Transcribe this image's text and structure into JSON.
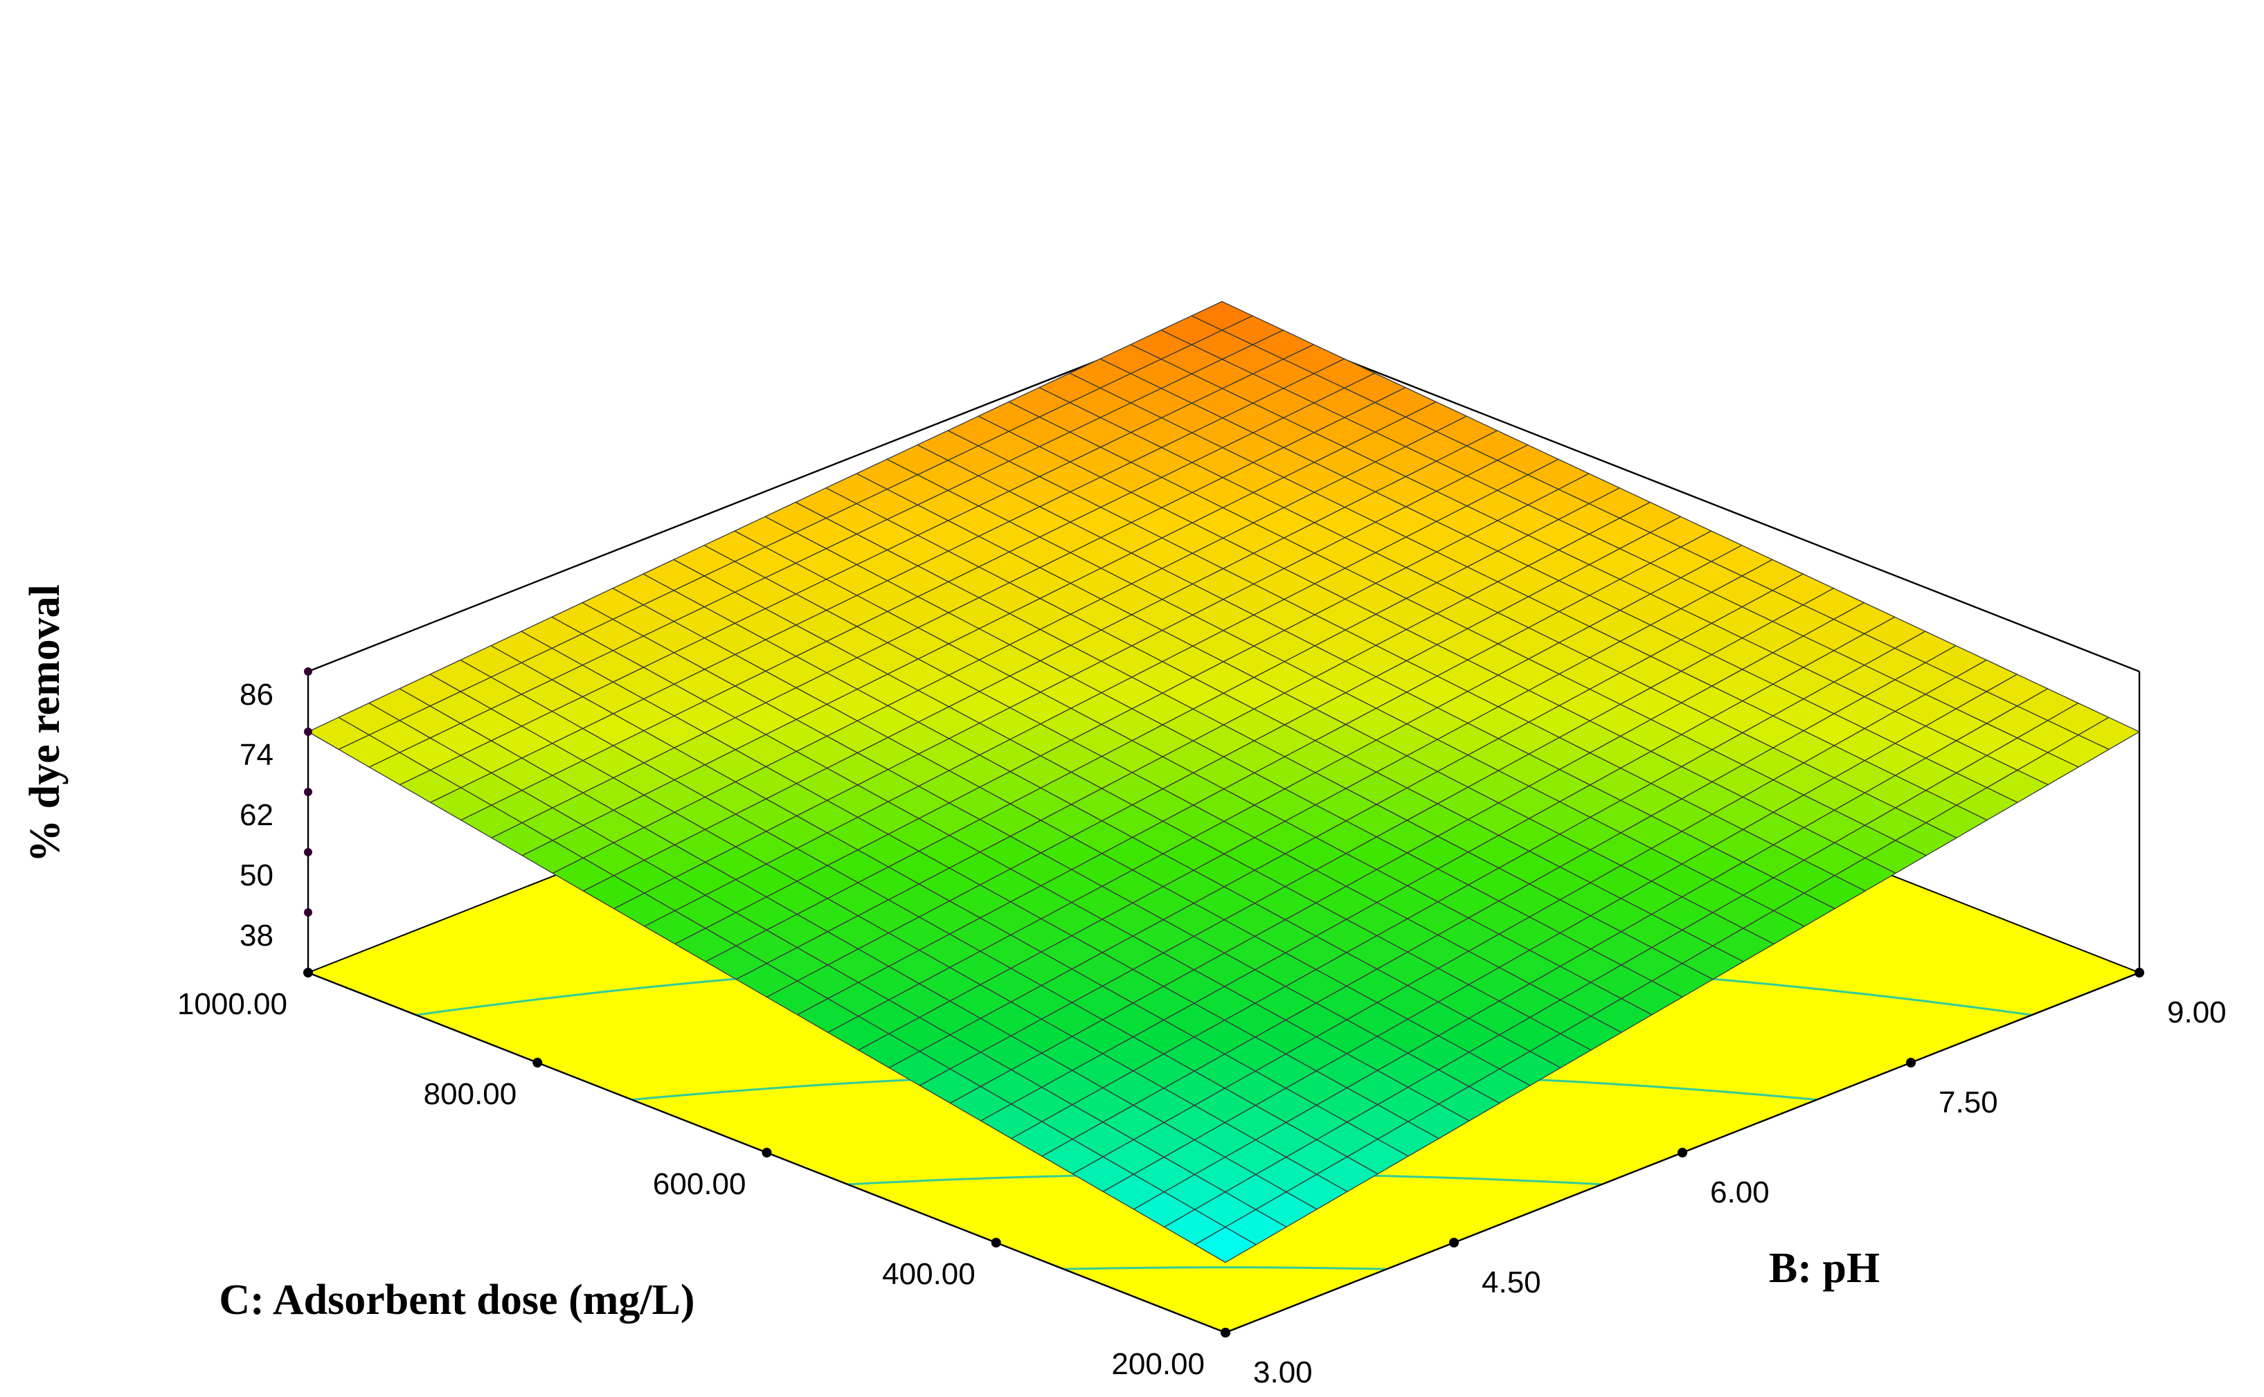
{
  "chart_data": {
    "type": "surface3d",
    "title": "",
    "zlabel": "% dye removal",
    "xlabel": "C: Adsorbent dose (mg/L)",
    "ylabel": "B: pH",
    "x_range": [
      200,
      1000
    ],
    "y_range": [
      3,
      9
    ],
    "z_range": [
      26,
      86
    ],
    "x_ticks": [
      "200.00",
      "400.00",
      "600.00",
      "800.00",
      "1000.00"
    ],
    "y_ticks": [
      "3.00",
      "4.50",
      "6.00",
      "7.50",
      "9.00"
    ],
    "z_ticks": [
      "38",
      "50",
      "62",
      "74",
      "86"
    ],
    "surface_corners": [
      {
        "dose": 200,
        "pH": 3,
        "removal": 40
      },
      {
        "dose": 1000,
        "pH": 3,
        "removal": 74
      },
      {
        "dose": 200,
        "pH": 9,
        "removal": 74
      },
      {
        "dose": 1000,
        "pH": 9,
        "removal": 88
      }
    ],
    "grid": true,
    "colors": {
      "floor": "#ffff00",
      "contour": "#33cc99",
      "low": "#00ffff",
      "mid": "#00dd00",
      "high_mid": "#ffee00",
      "high": "#ff7f00"
    }
  }
}
